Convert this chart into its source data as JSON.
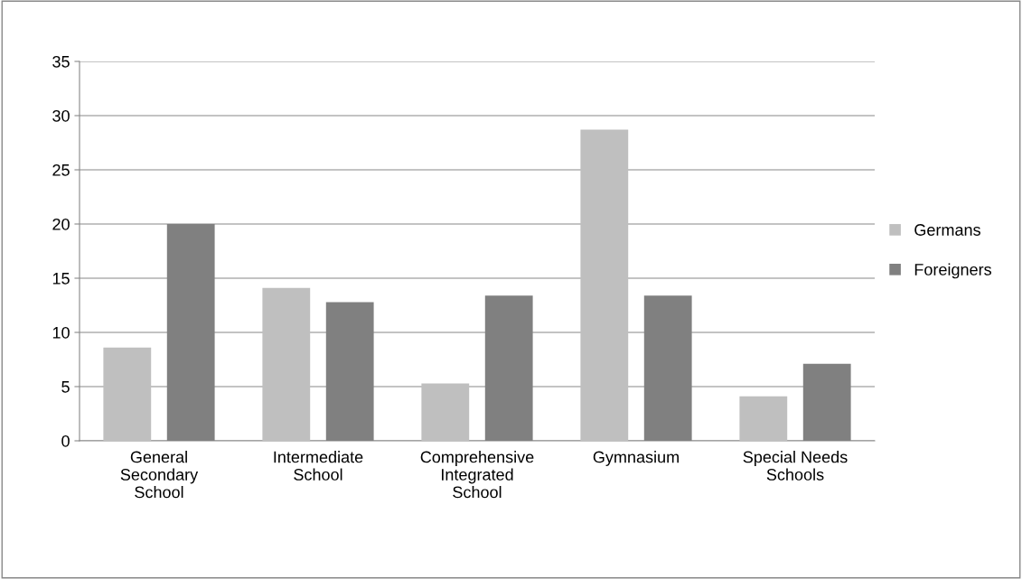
{
  "chart_data": {
    "type": "bar",
    "categories": [
      "General\nSecondary\nSchool",
      "Intermediate\nSchool",
      "Comprehensive\nIntegrated\nSchool",
      "Gymnasium",
      "Special Needs\nSchools"
    ],
    "series": [
      {
        "name": "Germans",
        "color": "#bfbfbf",
        "values": [
          8.6,
          14.1,
          5.3,
          28.7,
          4.1
        ]
      },
      {
        "name": "Foreigners",
        "color": "#808080",
        "values": [
          20.0,
          12.8,
          13.4,
          13.4,
          7.1
        ]
      }
    ],
    "ylim": [
      0,
      35
    ],
    "yticks": [
      0,
      5,
      10,
      15,
      20,
      25,
      30,
      35
    ],
    "grid": "y",
    "legend": "right"
  }
}
